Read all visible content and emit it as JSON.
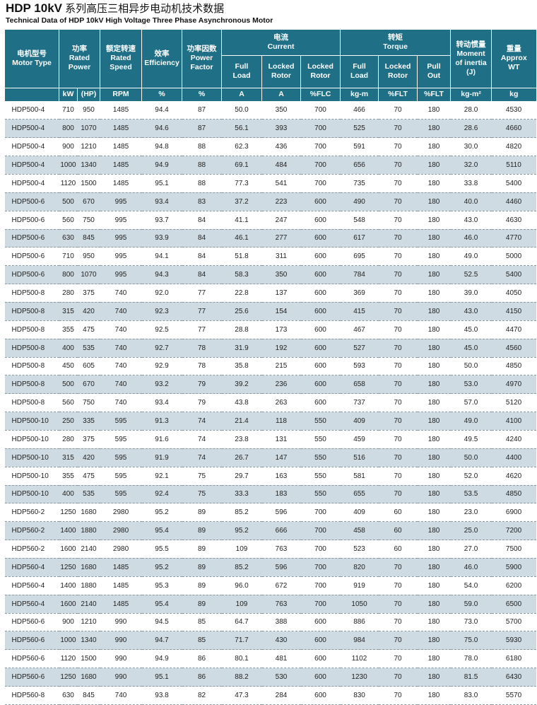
{
  "title": {
    "main": "HDP 10kV",
    "main_cn": " 系列高压三相异步电动机技术数据",
    "subtitle": "Technical Data of HDP 10kV High Voltage Three Phase Asynchronous Motor"
  },
  "headers": {
    "motor_type": {
      "cn": "电机型号",
      "en": "Motor Type"
    },
    "rated_power": {
      "cn": "功率",
      "en1": "Rated",
      "en2": "Power"
    },
    "rated_speed": {
      "cn": "额定转速",
      "en1": "Rated",
      "en2": "Speed"
    },
    "efficiency": {
      "cn": "效率",
      "en": "Efficiency"
    },
    "power_factor": {
      "cn": "功率因数",
      "en1": "Power",
      "en2": "Factor"
    },
    "current": {
      "cn": "电流",
      "en": "Current"
    },
    "torque": {
      "cn": "转矩",
      "en": "Torque"
    },
    "inertia": {
      "cn": "转动惯量",
      "en1": "Moment",
      "en2": "of inertia",
      "en3": "(J)"
    },
    "weight": {
      "cn": "重量",
      "en1": "Approx",
      "en2": "WT"
    },
    "current_full": {
      "l1": "Full",
      "l2": "Load"
    },
    "current_locked": {
      "l1": "Locked",
      "l2": "Rotor"
    },
    "current_locked2": {
      "l1": "Locked",
      "l2": "Rotor"
    },
    "torque_full": {
      "l1": "Full",
      "l2": "Load"
    },
    "torque_locked": {
      "l1": "Locked",
      "l2": "Rotor"
    },
    "torque_pull": {
      "l1": "Pull",
      "l2": "Out"
    }
  },
  "units": [
    "kW",
    "(HP)",
    "RPM",
    "%",
    "%",
    "A",
    "A",
    "%FLC",
    "kg-m",
    "%FLT",
    "%FLT",
    "kg-m²",
    "kg"
  ],
  "rows": [
    [
      "HDP500-4",
      "710",
      "950",
      "1485",
      "94.4",
      "87",
      "50.0",
      "350",
      "700",
      "466",
      "70",
      "180",
      "28.0",
      "4530"
    ],
    [
      "HDP500-4",
      "800",
      "1070",
      "1485",
      "94.6",
      "87",
      "56.1",
      "393",
      "700",
      "525",
      "70",
      "180",
      "28.6",
      "4660"
    ],
    [
      "HDP500-4",
      "900",
      "1210",
      "1485",
      "94.8",
      "88",
      "62.3",
      "436",
      "700",
      "591",
      "70",
      "180",
      "30.0",
      "4820"
    ],
    [
      "HDP500-4",
      "1000",
      "1340",
      "1485",
      "94.9",
      "88",
      "69.1",
      "484",
      "700",
      "656",
      "70",
      "180",
      "32.0",
      "5110"
    ],
    [
      "HDP500-4",
      "1120",
      "1500",
      "1485",
      "95.1",
      "88",
      "77.3",
      "541",
      "700",
      "735",
      "70",
      "180",
      "33.8",
      "5400"
    ],
    [
      "HDP500-6",
      "500",
      "670",
      "995",
      "93.4",
      "83",
      "37.2",
      "223",
      "600",
      "490",
      "70",
      "180",
      "40.0",
      "4460"
    ],
    [
      "HDP500-6",
      "560",
      "750",
      "995",
      "93.7",
      "84",
      "41.1",
      "247",
      "600",
      "548",
      "70",
      "180",
      "43.0",
      "4630"
    ],
    [
      "HDP500-6",
      "630",
      "845",
      "995",
      "93.9",
      "84",
      "46.1",
      "277",
      "600",
      "617",
      "70",
      "180",
      "46.0",
      "4770"
    ],
    [
      "HDP500-6",
      "710",
      "950",
      "995",
      "94.1",
      "84",
      "51.8",
      "311",
      "600",
      "695",
      "70",
      "180",
      "49.0",
      "5000"
    ],
    [
      "HDP500-6",
      "800",
      "1070",
      "995",
      "94.3",
      "84",
      "58.3",
      "350",
      "600",
      "784",
      "70",
      "180",
      "52.5",
      "5400"
    ],
    [
      "HDP500-8",
      "280",
      "375",
      "740",
      "92.0",
      "77",
      "22.8",
      "137",
      "600",
      "369",
      "70",
      "180",
      "39.0",
      "4050"
    ],
    [
      "HDP500-8",
      "315",
      "420",
      "740",
      "92.3",
      "77",
      "25.6",
      "154",
      "600",
      "415",
      "70",
      "180",
      "43.0",
      "4150"
    ],
    [
      "HDP500-8",
      "355",
      "475",
      "740",
      "92.5",
      "77",
      "28.8",
      "173",
      "600",
      "467",
      "70",
      "180",
      "45.0",
      "4470"
    ],
    [
      "HDP500-8",
      "400",
      "535",
      "740",
      "92.7",
      "78",
      "31.9",
      "192",
      "600",
      "527",
      "70",
      "180",
      "45.0",
      "4560"
    ],
    [
      "HDP500-8",
      "450",
      "605",
      "740",
      "92.9",
      "78",
      "35.8",
      "215",
      "600",
      "593",
      "70",
      "180",
      "50.0",
      "4850"
    ],
    [
      "HDP500-8",
      "500",
      "670",
      "740",
      "93.2",
      "79",
      "39.2",
      "236",
      "600",
      "658",
      "70",
      "180",
      "53.0",
      "4970"
    ],
    [
      "HDP500-8",
      "560",
      "750",
      "740",
      "93.4",
      "79",
      "43.8",
      "263",
      "600",
      "737",
      "70",
      "180",
      "57.0",
      "5120"
    ],
    [
      "HDP500-10",
      "250",
      "335",
      "595",
      "91.3",
      "74",
      "21.4",
      "118",
      "550",
      "409",
      "70",
      "180",
      "49.0",
      "4100"
    ],
    [
      "HDP500-10",
      "280",
      "375",
      "595",
      "91.6",
      "74",
      "23.8",
      "131",
      "550",
      "459",
      "70",
      "180",
      "49.5",
      "4240"
    ],
    [
      "HDP500-10",
      "315",
      "420",
      "595",
      "91.9",
      "74",
      "26.7",
      "147",
      "550",
      "516",
      "70",
      "180",
      "50.0",
      "4400"
    ],
    [
      "HDP500-10",
      "355",
      "475",
      "595",
      "92.1",
      "75",
      "29.7",
      "163",
      "550",
      "581",
      "70",
      "180",
      "52.0",
      "4620"
    ],
    [
      "HDP500-10",
      "400",
      "535",
      "595",
      "92.4",
      "75",
      "33.3",
      "183",
      "550",
      "655",
      "70",
      "180",
      "53.5",
      "4850"
    ],
    [
      "HDP560-2",
      "1250",
      "1680",
      "2980",
      "95.2",
      "89",
      "85.2",
      "596",
      "700",
      "409",
      "60",
      "180",
      "23.0",
      "6900"
    ],
    [
      "HDP560-2",
      "1400",
      "1880",
      "2980",
      "95.4",
      "89",
      "95.2",
      "666",
      "700",
      "458",
      "60",
      "180",
      "25.0",
      "7200"
    ],
    [
      "HDP560-2",
      "1600",
      "2140",
      "2980",
      "95.5",
      "89",
      "109",
      "763",
      "700",
      "523",
      "60",
      "180",
      "27.0",
      "7500"
    ],
    [
      "HDP560-4",
      "1250",
      "1680",
      "1485",
      "95.2",
      "89",
      "85.2",
      "596",
      "700",
      "820",
      "70",
      "180",
      "46.0",
      "5900"
    ],
    [
      "HDP560-4",
      "1400",
      "1880",
      "1485",
      "95.3",
      "89",
      "96.0",
      "672",
      "700",
      "919",
      "70",
      "180",
      "54.0",
      "6200"
    ],
    [
      "HDP560-4",
      "1600",
      "2140",
      "1485",
      "95.4",
      "89",
      "109",
      "763",
      "700",
      "1050",
      "70",
      "180",
      "59.0",
      "6500"
    ],
    [
      "HDP560-6",
      "900",
      "1210",
      "990",
      "94.5",
      "85",
      "64.7",
      "388",
      "600",
      "886",
      "70",
      "180",
      "73.0",
      "5700"
    ],
    [
      "HDP560-6",
      "1000",
      "1340",
      "990",
      "94.7",
      "85",
      "71.7",
      "430",
      "600",
      "984",
      "70",
      "180",
      "75.0",
      "5930"
    ],
    [
      "HDP560-6",
      "1120",
      "1500",
      "990",
      "94.9",
      "86",
      "80.1",
      "481",
      "600",
      "1102",
      "70",
      "180",
      "78.0",
      "6180"
    ],
    [
      "HDP560-6",
      "1250",
      "1680",
      "990",
      "95.1",
      "86",
      "88.2",
      "530",
      "600",
      "1230",
      "70",
      "180",
      "81.5",
      "6430"
    ],
    [
      "HDP560-8",
      "630",
      "845",
      "740",
      "93.8",
      "82",
      "47.3",
      "284",
      "600",
      "830",
      "70",
      "180",
      "83.0",
      "5570"
    ]
  ]
}
